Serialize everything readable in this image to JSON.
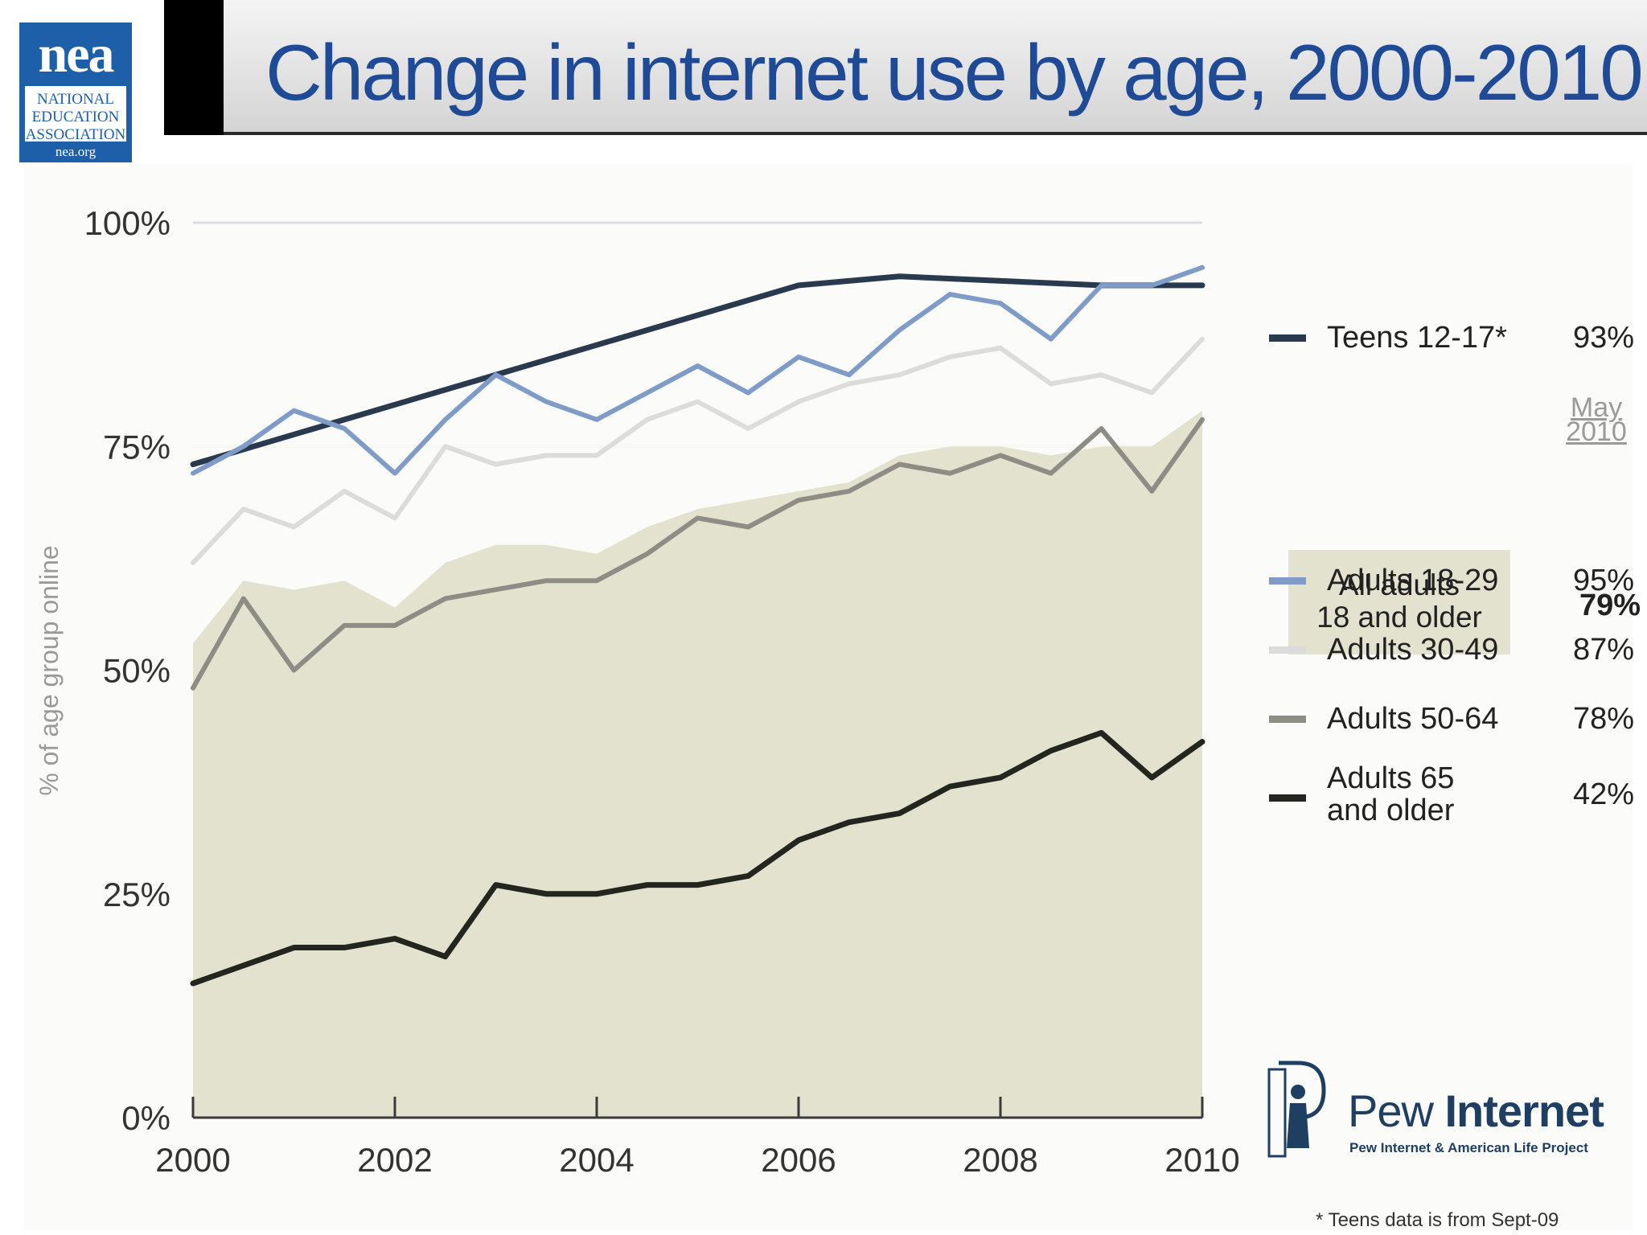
{
  "title": "Change in internet use by age, 2000-2010",
  "logo": {
    "mark": "nea",
    "name_lines": [
      "NATIONAL",
      "EDUCATION",
      "ASSOCIATION"
    ],
    "url": "nea.org"
  },
  "legend": {
    "header_line1": "May",
    "header_line2": "2010",
    "all_adults_line1": "All adults",
    "all_adults_line2": "18 and older",
    "all_adults_value": "79%",
    "all_adults_color": "#e2e2cf",
    "items": [
      {
        "label_line1": "Teens 12-17*",
        "label_line2": "",
        "value": "93%",
        "color": "#2a3a4e"
      },
      {
        "label_line1": "Adults 18-29",
        "label_line2": "",
        "value": "95%",
        "color": "#7f9cc8"
      },
      {
        "label_line1": "Adults 30-49",
        "label_line2": "",
        "value": "87%",
        "color": "#dcdcdc"
      },
      {
        "label_line1": "Adults 50-64",
        "label_line2": "",
        "value": "78%",
        "color": "#8d8d86"
      },
      {
        "label_line1": "Adults 65",
        "label_line2": "and older",
        "value": "42%",
        "color": "#23261f"
      }
    ]
  },
  "pew": {
    "name_light": "Pew",
    "name_bold": "Internet",
    "tagline": "Pew Internet & American Life Project"
  },
  "footnote": "* Teens data is from Sept-09",
  "chart_data": {
    "type": "line",
    "title": "Change in internet use by age, 2000-2010",
    "xlabel": "",
    "ylabel": "% of age group online",
    "xlim": [
      2000,
      2010
    ],
    "ylim": [
      0,
      100
    ],
    "x_ticks": [
      2000,
      2002,
      2004,
      2006,
      2008,
      2010
    ],
    "x_tick_labels": [
      "2000",
      "2002",
      "2004",
      "2006",
      "2008",
      "2010"
    ],
    "y_ticks": [
      0,
      25,
      50,
      75,
      100
    ],
    "y_tick_labels": [
      "0%",
      "25%",
      "50%",
      "75%",
      "100%"
    ],
    "grid": true,
    "legend_position": "right",
    "area": {
      "name": "All adults 18 and older",
      "color": "#e2e2cf",
      "x": [
        2000,
        2000.5,
        2001,
        2001.5,
        2002,
        2002.5,
        2003,
        2003.5,
        2004,
        2004.5,
        2005,
        2005.5,
        2006,
        2006.5,
        2007,
        2007.5,
        2008,
        2008.5,
        2009,
        2009.5,
        2010
      ],
      "y": [
        53,
        60,
        59,
        60,
        57,
        62,
        64,
        64,
        63,
        66,
        68,
        69,
        70,
        71,
        74,
        75,
        75,
        74,
        75,
        75,
        79
      ]
    },
    "series": [
      {
        "name": "Teens 12-17*",
        "color": "#2a3a4e",
        "width": 7,
        "x": [
          2000,
          2006,
          2007,
          2009,
          2010
        ],
        "y": [
          73,
          93,
          94,
          93,
          93
        ]
      },
      {
        "name": "Adults 18-29",
        "color": "#7f9cc8",
        "width": 6,
        "x": [
          2000,
          2000.5,
          2001,
          2001.5,
          2002,
          2002.5,
          2003,
          2003.5,
          2004,
          2004.5,
          2005,
          2005.5,
          2006,
          2006.5,
          2007,
          2007.5,
          2008,
          2008.5,
          2009,
          2009.5,
          2010
        ],
        "y": [
          72,
          75,
          79,
          77,
          72,
          78,
          83,
          80,
          78,
          81,
          84,
          81,
          85,
          83,
          88,
          92,
          91,
          87,
          93,
          93,
          95
        ]
      },
      {
        "name": "Adults 30-49",
        "color": "#dcdcdc",
        "width": 6,
        "x": [
          2000,
          2000.5,
          2001,
          2001.5,
          2002,
          2002.5,
          2003,
          2003.5,
          2004,
          2004.5,
          2005,
          2005.5,
          2006,
          2006.5,
          2007,
          2007.5,
          2008,
          2008.5,
          2009,
          2009.5,
          2010
        ],
        "y": [
          62,
          68,
          66,
          70,
          67,
          75,
          73,
          74,
          74,
          78,
          80,
          77,
          80,
          82,
          83,
          85,
          86,
          82,
          83,
          81,
          87
        ]
      },
      {
        "name": "Adults 50-64",
        "color": "#8d8d86",
        "width": 6,
        "x": [
          2000,
          2000.5,
          2001,
          2001.5,
          2002,
          2002.5,
          2003,
          2003.5,
          2004,
          2004.5,
          2005,
          2005.5,
          2006,
          2006.5,
          2007,
          2007.5,
          2008,
          2008.5,
          2009,
          2009.5,
          2010
        ],
        "y": [
          48,
          58,
          50,
          55,
          55,
          58,
          59,
          60,
          60,
          63,
          67,
          66,
          69,
          70,
          73,
          72,
          74,
          72,
          77,
          70,
          78
        ]
      },
      {
        "name": "Adults 65 and older",
        "color": "#23261f",
        "width": 7,
        "x": [
          2000,
          2000.5,
          2001,
          2001.5,
          2002,
          2002.5,
          2003,
          2003.5,
          2004,
          2004.5,
          2005,
          2005.5,
          2006,
          2006.5,
          2007,
          2007.5,
          2008,
          2008.5,
          2009,
          2009.5,
          2010
        ],
        "y": [
          15,
          17,
          19,
          19,
          20,
          18,
          26,
          25,
          25,
          26,
          26,
          27,
          31,
          33,
          34,
          37,
          38,
          41,
          43,
          38,
          42
        ]
      }
    ]
  }
}
